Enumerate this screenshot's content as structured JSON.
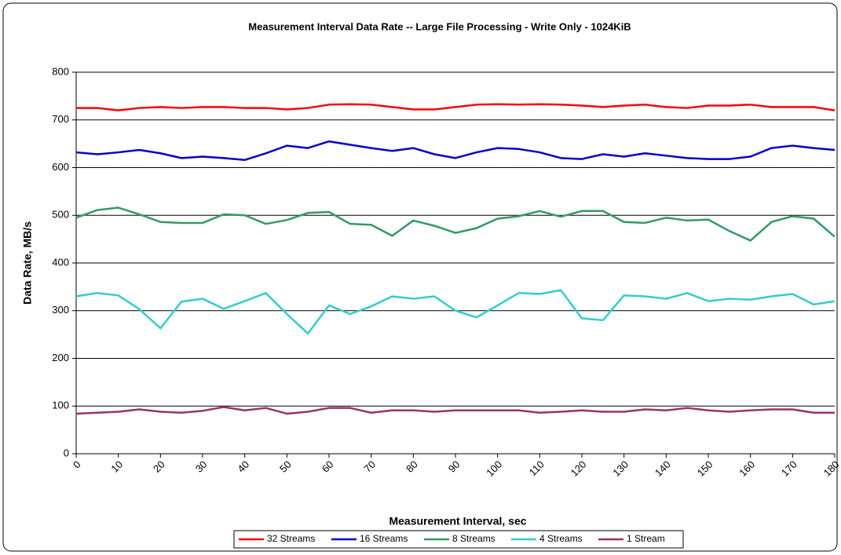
{
  "chart_data": {
    "type": "line",
    "title": "Measurement Interval Data Rate -- Large File Processing - Write Only - 1024KiB",
    "x_label": "Measurement Interval, sec",
    "y_label": "Data Rate, MB/s",
    "x": [
      0,
      5,
      10,
      15,
      20,
      25,
      30,
      35,
      40,
      45,
      50,
      55,
      60,
      65,
      70,
      75,
      80,
      85,
      90,
      95,
      100,
      105,
      110,
      115,
      120,
      125,
      130,
      135,
      140,
      145,
      150,
      155,
      160,
      165,
      170,
      175,
      180
    ],
    "xlim": [
      0,
      180
    ],
    "xticks": [
      0,
      10,
      20,
      30,
      40,
      50,
      60,
      70,
      80,
      90,
      100,
      110,
      120,
      130,
      140,
      150,
      160,
      170,
      180
    ],
    "ylim": [
      0,
      800
    ],
    "yticks": [
      0,
      100,
      200,
      300,
      400,
      500,
      600,
      700,
      800
    ],
    "grid": true,
    "legend": "bottom",
    "series": [
      {
        "name": "32 Streams",
        "color": "#ff0000",
        "values": [
          725,
          725,
          720,
          725,
          727,
          725,
          727,
          727,
          725,
          725,
          722,
          725,
          732,
          733,
          732,
          727,
          722,
          722,
          727,
          732,
          733,
          732,
          733,
          732,
          730,
          727,
          730,
          732,
          727,
          725,
          730,
          730,
          732,
          727,
          727,
          727,
          720
        ]
      },
      {
        "name": "16 Streams",
        "color": "#0000cc",
        "values": [
          632,
          628,
          632,
          637,
          630,
          620,
          623,
          620,
          616,
          630,
          646,
          641,
          655,
          648,
          641,
          635,
          641,
          628,
          620,
          632,
          641,
          639,
          632,
          620,
          618,
          628,
          623,
          630,
          625,
          620,
          618,
          618,
          623,
          641,
          646,
          641,
          637
        ]
      },
      {
        "name": "8 Streams",
        "color": "#339966",
        "values": [
          495,
          511,
          516,
          502,
          486,
          484,
          484,
          502,
          500,
          482,
          490,
          505,
          507,
          482,
          480,
          457,
          489,
          478,
          463,
          473,
          493,
          498,
          509,
          497,
          509,
          509,
          486,
          484,
          495,
          489,
          491,
          467,
          447,
          486,
          498,
          493,
          455
        ]
      },
      {
        "name": "4 Streams",
        "color": "#33cccc",
        "values": [
          330,
          337,
          332,
          303,
          263,
          319,
          325,
          304,
          320,
          337,
          293,
          252,
          311,
          293,
          309,
          330,
          325,
          330,
          300,
          286,
          311,
          337,
          335,
          343,
          284,
          280,
          332,
          330,
          325,
          337,
          320,
          325,
          323,
          330,
          335,
          313,
          320
        ]
      },
      {
        "name": "1 Stream",
        "color": "#993366",
        "values": [
          84,
          86,
          88,
          93,
          88,
          86,
          90,
          98,
          91,
          96,
          84,
          88,
          96,
          96,
          86,
          91,
          91,
          88,
          91,
          91,
          91,
          91,
          86,
          88,
          91,
          88,
          88,
          93,
          91,
          96,
          91,
          88,
          91,
          93,
          93,
          86,
          86
        ]
      }
    ]
  }
}
